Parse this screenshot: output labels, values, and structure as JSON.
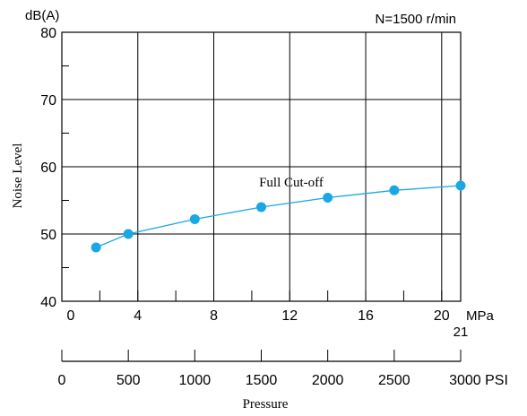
{
  "chart_data": {
    "type": "line",
    "y_unit_label": "dB(A)",
    "condition_label": "N=1500 r/min",
    "ylabel": "Noise Level",
    "xlabel": "Pressure",
    "ylim": [
      40,
      80
    ],
    "y_ticks": [
      "80",
      "70",
      "60",
      "50",
      "40"
    ],
    "y_tick_values": [
      80,
      70,
      60,
      50,
      40
    ],
    "x_mpa_lim": [
      0,
      21
    ],
    "x_mpa_ticks": [
      "0",
      "4",
      "8",
      "12",
      "16",
      "20"
    ],
    "x_mpa_tick_values": [
      0,
      4,
      8,
      12,
      16,
      20
    ],
    "x_mpa_unit": "MPa",
    "x_mpa_end_label": "21",
    "x_psi_lim": [
      0,
      3000
    ],
    "x_psi_ticks": [
      "0",
      "500",
      "1000",
      "1500",
      "2000",
      "2500",
      "3000 PSI"
    ],
    "x_psi_tick_values": [
      0,
      500,
      1000,
      1500,
      2000,
      2500,
      3000
    ],
    "grid": true,
    "series": [
      {
        "name": "Full Cut-off",
        "color": "#1aa7e6",
        "x_mpa": [
          1.8,
          3.5,
          7.0,
          10.5,
          14.0,
          17.5,
          21.0
        ],
        "values": [
          48.0,
          50.0,
          52.2,
          54.0,
          55.4,
          56.5,
          57.2
        ]
      }
    ]
  }
}
